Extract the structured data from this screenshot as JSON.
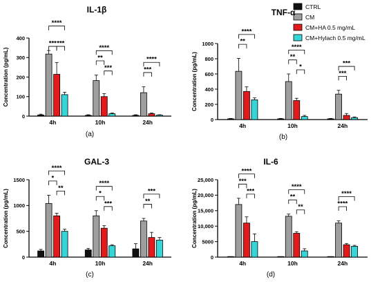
{
  "legend": [
    {
      "name": "CTRL",
      "color": "#111111"
    },
    {
      "name": "CM",
      "color": "#9e9e9e"
    },
    {
      "name": "CM+HA 0.5 mg/mL",
      "color": "#e31a1c"
    },
    {
      "name": "CM+Hylach 0.5 mg/mL",
      "color": "#36d6d8"
    }
  ],
  "chart_data": [
    {
      "type": "bar",
      "title": "IL-1β",
      "caption": "(a)",
      "ylabel": "Concentration (pg/mL)",
      "ylim": [
        0,
        400
      ],
      "yticks": [
        "0",
        "100",
        "200",
        "300",
        "400"
      ],
      "categories": [
        "4h",
        "10h",
        "24h"
      ],
      "series": [
        {
          "name": "CTRL",
          "values": [
            6,
            4,
            4
          ],
          "errors": [
            4,
            3,
            3
          ]
        },
        {
          "name": "CM",
          "values": [
            318,
            182,
            120
          ],
          "errors": [
            18,
            28,
            30
          ]
        },
        {
          "name": "CM+HA 0.5 mg/mL",
          "values": [
            214,
            100,
            12
          ],
          "errors": [
            60,
            15,
            4
          ]
        },
        {
          "name": "CM+Hylach 0.5 mg/mL",
          "values": [
            110,
            12,
            5
          ],
          "errors": [
            12,
            4,
            2
          ]
        }
      ],
      "annotations": [
        {
          "category": "4h",
          "from": 1,
          "to": 3,
          "label": "****",
          "level": 3
        },
        {
          "category": "4h",
          "from": 1,
          "to": 2,
          "label": "***",
          "level": 1
        },
        {
          "category": "4h",
          "from": 2,
          "to": 3,
          "label": "***",
          "level": 1
        },
        {
          "category": "10h",
          "from": 1,
          "to": 3,
          "label": "****",
          "level": 3
        },
        {
          "category": "10h",
          "from": 1,
          "to": 2,
          "label": "**",
          "level": 2
        },
        {
          "category": "10h",
          "from": 2,
          "to": 3,
          "label": "***",
          "level": 1
        },
        {
          "category": "24h",
          "from": 1,
          "to": 3,
          "label": "****",
          "level": 3
        },
        {
          "category": "24h",
          "from": 1,
          "to": 2,
          "label": "***",
          "level": 2
        }
      ]
    },
    {
      "type": "bar",
      "title": "TNF-α",
      "caption": "(b)",
      "ylabel": "Concentration (pg/mL)",
      "ylim": [
        0,
        1000
      ],
      "yticks": [
        "0",
        "200",
        "400",
        "600",
        "800",
        "1000"
      ],
      "categories": [
        "4h",
        "10h",
        "24h"
      ],
      "series": [
        {
          "name": "CTRL",
          "values": [
            10,
            10,
            10
          ],
          "errors": [
            5,
            5,
            5
          ]
        },
        {
          "name": "CM",
          "values": [
            635,
            500,
            335
          ],
          "errors": [
            170,
            100,
            50
          ]
        },
        {
          "name": "CM+HA 0.5 mg/mL",
          "values": [
            370,
            250,
            55
          ],
          "errors": [
            60,
            30,
            25
          ]
        },
        {
          "name": "CM+Hylach 0.5 mg/mL",
          "values": [
            260,
            40,
            25
          ],
          "errors": [
            25,
            15,
            10
          ]
        }
      ],
      "annotations": [
        {
          "category": "4h",
          "from": 1,
          "to": 3,
          "label": "****",
          "level": 3
        },
        {
          "category": "4h",
          "from": 1,
          "to": 2,
          "label": "**",
          "level": 2
        },
        {
          "category": "10h",
          "from": 1,
          "to": 3,
          "label": "****",
          "level": 3
        },
        {
          "category": "10h",
          "from": 1,
          "to": 2,
          "label": "**",
          "level": 2
        },
        {
          "category": "10h",
          "from": 2,
          "to": 3,
          "label": "*",
          "level": 1
        },
        {
          "category": "24h",
          "from": 1,
          "to": 3,
          "label": "***",
          "level": 3
        },
        {
          "category": "24h",
          "from": 1,
          "to": 2,
          "label": "***",
          "level": 2
        }
      ]
    },
    {
      "type": "bar",
      "title": "GAL-3",
      "caption": "(c)",
      "ylabel": "Concentration (pg/mL)",
      "ylim": [
        0,
        1500
      ],
      "yticks": [
        "0",
        "500",
        "1000",
        "1500"
      ],
      "categories": [
        "4h",
        "10h",
        "24h"
      ],
      "series": [
        {
          "name": "CTRL",
          "values": [
            120,
            140,
            160
          ],
          "errors": [
            30,
            30,
            100
          ]
        },
        {
          "name": "CM",
          "values": [
            1040,
            800,
            700
          ],
          "errors": [
            160,
            100,
            50
          ]
        },
        {
          "name": "CM+HA 0.5 mg/mL",
          "values": [
            800,
            560,
            380
          ],
          "errors": [
            50,
            50,
            100
          ]
        },
        {
          "name": "CM+Hylach 0.5 mg/mL",
          "values": [
            500,
            220,
            330
          ],
          "errors": [
            40,
            20,
            50
          ]
        }
      ],
      "annotations": [
        {
          "category": "4h",
          "from": 1,
          "to": 3,
          "label": "****",
          "level": 3
        },
        {
          "category": "4h",
          "from": 1,
          "to": 2,
          "label": "*",
          "level": 2
        },
        {
          "category": "4h",
          "from": 2,
          "to": 3,
          "label": "**",
          "level": 1
        },
        {
          "category": "10h",
          "from": 1,
          "to": 3,
          "label": "****",
          "level": 3
        },
        {
          "category": "10h",
          "from": 1,
          "to": 2,
          "label": "*",
          "level": 2
        },
        {
          "category": "10h",
          "from": 2,
          "to": 3,
          "label": "***",
          "level": 1
        },
        {
          "category": "24h",
          "from": 1,
          "to": 3,
          "label": "***",
          "level": 3
        },
        {
          "category": "24h",
          "from": 1,
          "to": 2,
          "label": "**",
          "level": 2
        }
      ]
    },
    {
      "type": "bar",
      "title": "IL-6",
      "caption": "(d)",
      "ylabel": "Concentration (pg/mL)",
      "ylim": [
        0,
        25000
      ],
      "yticks": [
        "0",
        "5000",
        "10,000",
        "15,000",
        "20,000",
        "25,000"
      ],
      "categories": [
        "4h",
        "10h",
        "24h"
      ],
      "series": [
        {
          "name": "CTRL",
          "values": [
            100,
            100,
            100
          ],
          "errors": [
            50,
            50,
            50
          ]
        },
        {
          "name": "CM",
          "values": [
            17000,
            13200,
            11000
          ],
          "errors": [
            2000,
            700,
            700
          ]
        },
        {
          "name": "CM+HA 0.5 mg/mL",
          "values": [
            11000,
            7700,
            4000
          ],
          "errors": [
            2000,
            500,
            400
          ]
        },
        {
          "name": "CM+Hylach 0.5 mg/mL",
          "values": [
            5000,
            2000,
            3500
          ],
          "errors": [
            2500,
            700,
            300
          ]
        }
      ],
      "annotations": [
        {
          "category": "4h",
          "from": 1,
          "to": 3,
          "label": "****",
          "level": 3
        },
        {
          "category": "4h",
          "from": 1,
          "to": 2,
          "label": "***",
          "level": 2
        },
        {
          "category": "4h",
          "from": 2,
          "to": 3,
          "label": "***",
          "level": 1
        },
        {
          "category": "10h",
          "from": 1,
          "to": 3,
          "label": "****",
          "level": 3
        },
        {
          "category": "10h",
          "from": 1,
          "to": 2,
          "label": "**",
          "level": 2
        },
        {
          "category": "10h",
          "from": 2,
          "to": 3,
          "label": "**",
          "level": 1
        },
        {
          "category": "24h",
          "from": 1,
          "to": 3,
          "label": "****",
          "level": 3
        },
        {
          "category": "24h",
          "from": 1,
          "to": 2,
          "label": "****",
          "level": 2
        }
      ]
    }
  ]
}
